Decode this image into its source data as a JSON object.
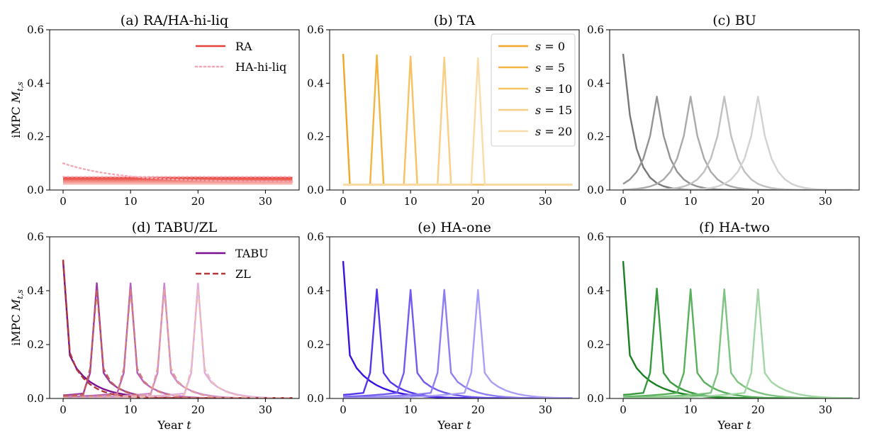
{
  "figure": {
    "x_axis_label": "Year t",
    "y_axis_label": "iMPC M_{t,s}"
  },
  "chart_data": [
    {
      "type": "line",
      "title": "(a) RA/HA-hi-liq",
      "xlabel": "",
      "ylabel": "iMPC M_{t,s}",
      "xlim": [
        -2,
        35
      ],
      "ylim": [
        0,
        0.6
      ],
      "xticks": [
        "0",
        "10",
        "20",
        "30"
      ],
      "yticks": [
        "0.0",
        "0.2",
        "0.4",
        "0.6"
      ],
      "legend_position": "top-right",
      "legend": [
        {
          "label": "RA",
          "color": "#e8413a",
          "style": "solid"
        },
        {
          "label": "HA-hi-liq",
          "color": "#f4a6b3",
          "style": "dotted"
        }
      ],
      "series": [
        {
          "group": "RA",
          "s": 0,
          "color": "#e8413a",
          "style": "solid",
          "kind": "flat",
          "level": 0.046
        },
        {
          "group": "RA",
          "s": 5,
          "color": "#ec6259",
          "style": "solid",
          "kind": "flat",
          "level": 0.04
        },
        {
          "group": "RA",
          "s": 10,
          "color": "#f08078",
          "style": "solid",
          "kind": "flat",
          "level": 0.034
        },
        {
          "group": "RA",
          "s": 15,
          "color": "#f49c95",
          "style": "solid",
          "kind": "flat",
          "level": 0.028
        },
        {
          "group": "RA",
          "s": 20,
          "color": "#f7b6b0",
          "style": "solid",
          "kind": "flat",
          "level": 0.023
        },
        {
          "group": "HA-hi-liq",
          "s": 0,
          "color": "#f4a6b3",
          "style": "dotted",
          "kind": "decay",
          "start": 0.1,
          "end": 0.03,
          "rate": 0.12
        },
        {
          "group": "HA-hi-liq",
          "s": 5,
          "color": "#f6b8c2",
          "style": "dotted",
          "kind": "flat",
          "level": 0.05
        }
      ]
    },
    {
      "type": "line",
      "title": "(b) TA",
      "xlabel": "",
      "ylabel": "",
      "xlim": [
        -2,
        35
      ],
      "ylim": [
        0,
        0.6
      ],
      "xticks": [
        "0",
        "10",
        "20",
        "30"
      ],
      "yticks": [
        "0.0",
        "0.2",
        "0.4",
        "0.6"
      ],
      "legend_position": "top-right",
      "legend": [
        {
          "label": "s = 0",
          "color": "#f0a628",
          "style": "solid"
        },
        {
          "label": "s = 5",
          "color": "#f3b440",
          "style": "solid"
        },
        {
          "label": "s = 10",
          "color": "#f6c262",
          "style": "solid"
        },
        {
          "label": "s = 15",
          "color": "#f8cf85",
          "style": "solid"
        },
        {
          "label": "s = 20",
          "color": "#fadca8",
          "style": "solid"
        }
      ],
      "series": [
        {
          "s": 0,
          "color": "#f0a628",
          "style": "solid",
          "kind": "spike",
          "peak": 0.51,
          "base": 0.02
        },
        {
          "s": 5,
          "color": "#f3b440",
          "style": "solid",
          "kind": "spike",
          "peak": 0.505,
          "base": 0.02
        },
        {
          "s": 10,
          "color": "#f6c262",
          "style": "solid",
          "kind": "spike",
          "peak": 0.5,
          "base": 0.02
        },
        {
          "s": 15,
          "color": "#f8cf85",
          "style": "solid",
          "kind": "spike",
          "peak": 0.497,
          "base": 0.02
        },
        {
          "s": 20,
          "color": "#fadca8",
          "style": "solid",
          "kind": "spike",
          "peak": 0.494,
          "base": 0.02
        }
      ]
    },
    {
      "type": "line",
      "title": "(c) BU",
      "xlabel": "",
      "ylabel": "",
      "xlim": [
        -2,
        35
      ],
      "ylim": [
        0,
        0.6
      ],
      "xticks": [
        "0",
        "10",
        "20",
        "30"
      ],
      "yticks": [
        "0.0",
        "0.2",
        "0.4",
        "0.6"
      ],
      "series": [
        {
          "s": 0,
          "color": "#777777",
          "style": "solid",
          "kind": "smooth",
          "peak": 0.51,
          "rpre": 0.55,
          "rpost": 0.55
        },
        {
          "s": 5,
          "color": "#939393",
          "style": "solid",
          "kind": "smooth",
          "peak": 0.35,
          "rpre": 0.58,
          "rpost": 0.58
        },
        {
          "s": 10,
          "color": "#aaaaaa",
          "style": "solid",
          "kind": "smooth",
          "peak": 0.35,
          "rpre": 0.58,
          "rpost": 0.58
        },
        {
          "s": 15,
          "color": "#c0c0c0",
          "style": "solid",
          "kind": "smooth",
          "peak": 0.35,
          "rpre": 0.58,
          "rpost": 0.58
        },
        {
          "s": 20,
          "color": "#d2d2d2",
          "style": "solid",
          "kind": "smooth",
          "peak": 0.35,
          "rpre": 0.58,
          "rpost": 0.58
        }
      ]
    },
    {
      "type": "line",
      "title": "(d) TABU/ZL",
      "xlabel": "Year t",
      "ylabel": "iMPC M_{t,s}",
      "xlim": [
        -2,
        35
      ],
      "ylim": [
        0,
        0.6
      ],
      "xticks": [
        "0",
        "10",
        "20",
        "30"
      ],
      "yticks": [
        "0.0",
        "0.2",
        "0.4",
        "0.6"
      ],
      "legend_position": "top-right",
      "legend": [
        {
          "label": "TABU",
          "color": "#7a1090",
          "style": "solid"
        },
        {
          "label": "ZL",
          "color": "#b03a3a",
          "style": "dashed"
        }
      ],
      "series": [
        {
          "group": "TABU",
          "s": 0,
          "color": "#7a1090",
          "style": "solid",
          "kind": "peak",
          "peak": 0.51,
          "base": 0.025,
          "p1": 0.16,
          "a": 0.1,
          "ra": 0.8,
          "rb": 0.7
        },
        {
          "group": "TABU",
          "s": 5,
          "color": "#9a3aa8",
          "style": "solid",
          "kind": "peak",
          "peak": 0.428,
          "base": 0.025,
          "p1": 0.095,
          "a": 0.1,
          "ra": 0.8,
          "rb": 0.7
        },
        {
          "group": "TABU",
          "s": 10,
          "color": "#b55fbf",
          "style": "solid",
          "kind": "peak",
          "peak": 0.427,
          "base": 0.025,
          "p1": 0.095,
          "a": 0.1,
          "ra": 0.8,
          "rb": 0.7
        },
        {
          "group": "TABU",
          "s": 15,
          "color": "#cc86d2",
          "style": "solid",
          "kind": "peak",
          "peak": 0.427,
          "base": 0.025,
          "p1": 0.095,
          "a": 0.1,
          "ra": 0.8,
          "rb": 0.7
        },
        {
          "group": "TABU",
          "s": 20,
          "color": "#ddaae1",
          "style": "solid",
          "kind": "peak",
          "peak": 0.427,
          "base": 0.025,
          "p1": 0.095,
          "a": 0.1,
          "ra": 0.8,
          "rb": 0.7
        },
        {
          "group": "ZL",
          "s": 0,
          "color": "#b03a3a",
          "style": "dashed",
          "kind": "peak",
          "peak": 0.515,
          "base": 0.02,
          "p1": 0.17,
          "a": 0.14,
          "ra": 0.75,
          "rb": 0.68
        },
        {
          "group": "ZL",
          "s": 5,
          "color": "#c35a5a",
          "style": "dashed",
          "kind": "peak",
          "peak": 0.405,
          "base": 0.02,
          "p1": 0.11,
          "a": 0.14,
          "ra": 0.75,
          "rb": 0.68
        },
        {
          "group": "ZL",
          "s": 10,
          "color": "#d47c7c",
          "style": "dashed",
          "kind": "peak",
          "peak": 0.408,
          "base": 0.02,
          "p1": 0.11,
          "a": 0.14,
          "ra": 0.75,
          "rb": 0.68
        },
        {
          "group": "ZL",
          "s": 15,
          "color": "#e29e9e",
          "style": "dashed",
          "kind": "peak",
          "peak": 0.408,
          "base": 0.02,
          "p1": 0.11,
          "a": 0.14,
          "ra": 0.75,
          "rb": 0.68
        },
        {
          "group": "ZL",
          "s": 20,
          "color": "#ecbcbc",
          "style": "dashed",
          "kind": "peak",
          "peak": 0.408,
          "base": 0.02,
          "p1": 0.11,
          "a": 0.14,
          "ra": 0.75,
          "rb": 0.68
        }
      ]
    },
    {
      "type": "line",
      "title": "(e) HA-one",
      "xlabel": "Year t",
      "ylabel": "",
      "xlim": [
        -2,
        35
      ],
      "ylim": [
        0,
        0.6
      ],
      "xticks": [
        "0",
        "10",
        "20",
        "30"
      ],
      "yticks": [
        "0.0",
        "0.2",
        "0.4",
        "0.6"
      ],
      "series": [
        {
          "s": 0,
          "color": "#3a10e0",
          "style": "solid",
          "kind": "peak",
          "peak": 0.51,
          "base": 0.028,
          "p1": 0.16,
          "a": 0.1,
          "ra": 0.8,
          "rb": 0.72
        },
        {
          "s": 5,
          "color": "#5535ea",
          "style": "solid",
          "kind": "peak",
          "peak": 0.405,
          "base": 0.028,
          "p1": 0.095,
          "a": 0.1,
          "ra": 0.8,
          "rb": 0.72
        },
        {
          "s": 10,
          "color": "#715aef",
          "style": "solid",
          "kind": "peak",
          "peak": 0.403,
          "base": 0.028,
          "p1": 0.095,
          "a": 0.1,
          "ra": 0.8,
          "rb": 0.72
        },
        {
          "s": 15,
          "color": "#8d7ef3",
          "style": "solid",
          "kind": "peak",
          "peak": 0.403,
          "base": 0.028,
          "p1": 0.095,
          "a": 0.1,
          "ra": 0.8,
          "rb": 0.72
        },
        {
          "s": 20,
          "color": "#a99ff6",
          "style": "solid",
          "kind": "peak",
          "peak": 0.403,
          "base": 0.028,
          "p1": 0.095,
          "a": 0.1,
          "ra": 0.8,
          "rb": 0.72
        }
      ]
    },
    {
      "type": "line",
      "title": "(f) HA-two",
      "xlabel": "Year t",
      "ylabel": "",
      "xlim": [
        -2,
        35
      ],
      "ylim": [
        0,
        0.6
      ],
      "xticks": [
        "0",
        "10",
        "20",
        "30"
      ],
      "yticks": [
        "0.0",
        "0.2",
        "0.4",
        "0.6"
      ],
      "series": [
        {
          "s": 0,
          "color": "#1a7f20",
          "style": "solid",
          "kind": "peak",
          "peak": 0.51,
          "base": 0.028,
          "p1": 0.16,
          "a": 0.1,
          "ra": 0.8,
          "rb": 0.72
        },
        {
          "s": 5,
          "color": "#379a3d",
          "style": "solid",
          "kind": "peak",
          "peak": 0.408,
          "base": 0.028,
          "p1": 0.095,
          "a": 0.1,
          "ra": 0.8,
          "rb": 0.72
        },
        {
          "s": 10,
          "color": "#58b05d",
          "style": "solid",
          "kind": "peak",
          "peak": 0.405,
          "base": 0.028,
          "p1": 0.095,
          "a": 0.1,
          "ra": 0.8,
          "rb": 0.72
        },
        {
          "s": 15,
          "color": "#7dc481",
          "style": "solid",
          "kind": "peak",
          "peak": 0.405,
          "base": 0.028,
          "p1": 0.095,
          "a": 0.1,
          "ra": 0.8,
          "rb": 0.72
        },
        {
          "s": 20,
          "color": "#a2d6a5",
          "style": "solid",
          "kind": "peak",
          "peak": 0.405,
          "base": 0.028,
          "p1": 0.095,
          "a": 0.1,
          "ra": 0.8,
          "rb": 0.72
        }
      ]
    }
  ]
}
